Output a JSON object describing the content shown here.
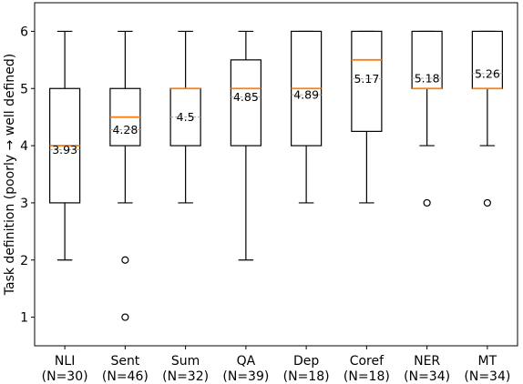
{
  "chart_data": {
    "type": "box",
    "title": "",
    "xlabel": "",
    "ylabel": "Task definition (poorly → well defined)",
    "ylim": [
      0.5,
      6.5
    ],
    "yticks": [
      1,
      2,
      3,
      4,
      5,
      6
    ],
    "grid": false,
    "categories": [
      {
        "name": "NLI",
        "n_label": "(N=30)",
        "whisker_low": 2,
        "q1": 3,
        "median": 4,
        "q3": 5,
        "whisker_high": 6,
        "mean": 3.93,
        "mean_label": "3.93",
        "outliers": []
      },
      {
        "name": "Sent",
        "n_label": "(N=46)",
        "whisker_low": 3,
        "q1": 4,
        "median": 4.5,
        "q3": 5,
        "whisker_high": 6,
        "mean": 4.28,
        "mean_label": "4.28",
        "outliers": [
          2,
          1
        ]
      },
      {
        "name": "Sum",
        "n_label": "(N=32)",
        "whisker_low": 3,
        "q1": 4,
        "median": 5,
        "q3": 5,
        "whisker_high": 6,
        "mean": 4.5,
        "mean_label": "4.5",
        "outliers": []
      },
      {
        "name": "QA",
        "n_label": "(N=39)",
        "whisker_low": 2,
        "q1": 4,
        "median": 5,
        "q3": 5.5,
        "whisker_high": 6,
        "mean": 4.85,
        "mean_label": "4.85",
        "outliers": []
      },
      {
        "name": "Dep",
        "n_label": "(N=18)",
        "whisker_low": 3,
        "q1": 4,
        "median": 5,
        "q3": 6,
        "whisker_high": 6,
        "mean": 4.89,
        "mean_label": "4.89",
        "outliers": []
      },
      {
        "name": "Coref",
        "n_label": "(N=18)",
        "whisker_low": 3,
        "q1": 4.25,
        "median": 5.5,
        "q3": 6,
        "whisker_high": 6,
        "mean": 5.17,
        "mean_label": "5.17",
        "outliers": []
      },
      {
        "name": "NER",
        "n_label": "(N=34)",
        "whisker_low": 4,
        "q1": 5,
        "median": 5,
        "q3": 6,
        "whisker_high": 6,
        "mean": 5.18,
        "mean_label": "5.18",
        "outliers": [
          3
        ]
      },
      {
        "name": "MT",
        "n_label": "(N=34)",
        "whisker_low": 4,
        "q1": 5,
        "median": 5,
        "q3": 6,
        "whisker_high": 6,
        "mean": 5.26,
        "mean_label": "5.26",
        "outliers": [
          3
        ]
      }
    ],
    "colors": {
      "box": "#000000",
      "median": "#ff7f0e",
      "mean_line": "#aaaaaa",
      "outlier": "#000000"
    }
  }
}
